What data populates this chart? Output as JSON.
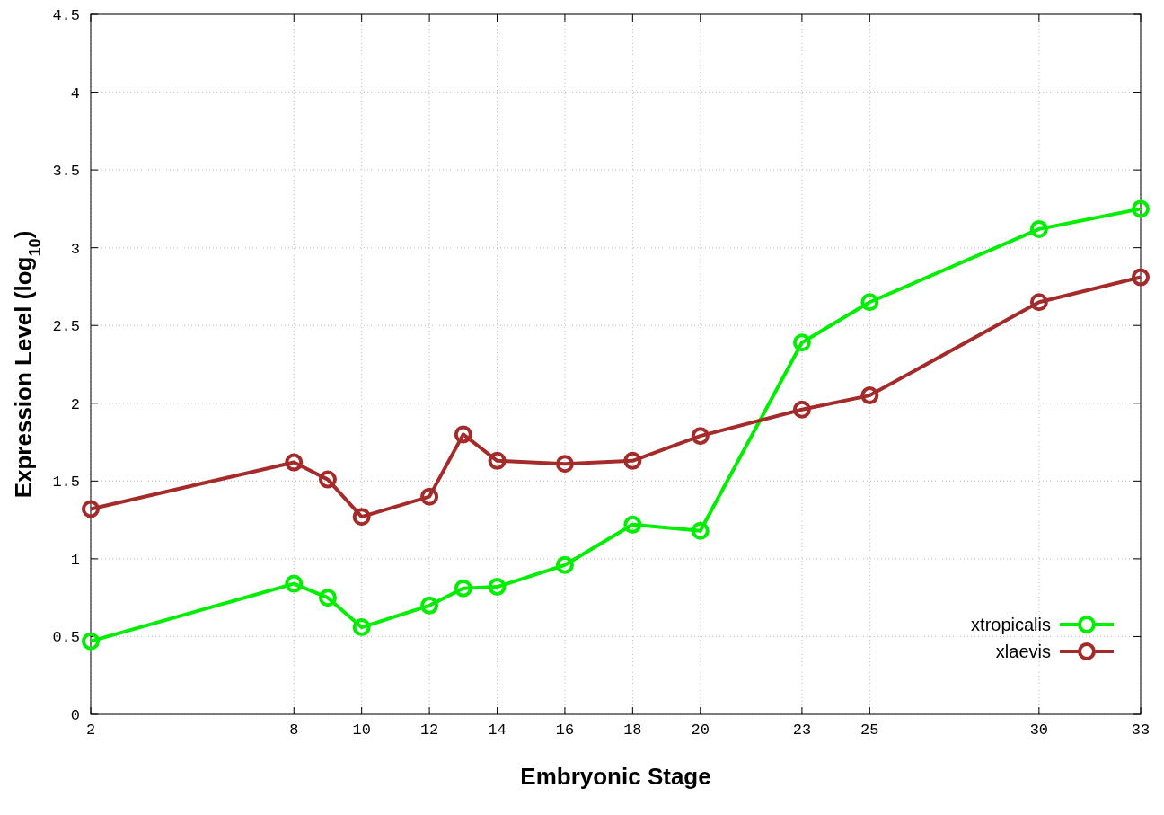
{
  "chart_data": {
    "type": "line",
    "xlabel": "Embryonic Stage",
    "ylabel": "Expression Level (log$_{10}$)",
    "x": [
      2,
      8,
      9,
      10,
      12,
      13,
      14,
      16,
      18,
      20,
      23,
      25,
      30,
      33
    ],
    "series": [
      {
        "name": "xtropicalis",
        "color": "#00ee00",
        "values": [
          0.47,
          0.84,
          0.75,
          0.56,
          0.7,
          0.81,
          0.82,
          0.96,
          1.22,
          1.18,
          2.39,
          2.65,
          3.12,
          3.25
        ]
      },
      {
        "name": "xlaevis",
        "color": "#a52a2a",
        "values": [
          1.32,
          1.62,
          1.51,
          1.27,
          1.4,
          1.8,
          1.63,
          1.61,
          1.63,
          1.79,
          1.96,
          2.05,
          2.65,
          2.81
        ]
      }
    ],
    "xlim": [
      2,
      33
    ],
    "xticks": [
      2,
      8,
      10,
      12,
      14,
      16,
      18,
      20,
      23,
      25,
      30,
      33
    ],
    "ylim": [
      0,
      4.5
    ],
    "yticks": [
      0,
      0.5,
      1,
      1.5,
      2,
      2.5,
      3,
      3.5,
      4,
      4.5
    ],
    "grid": true,
    "legend": "bottom right",
    "marker": "circle",
    "line_style": "solid"
  }
}
